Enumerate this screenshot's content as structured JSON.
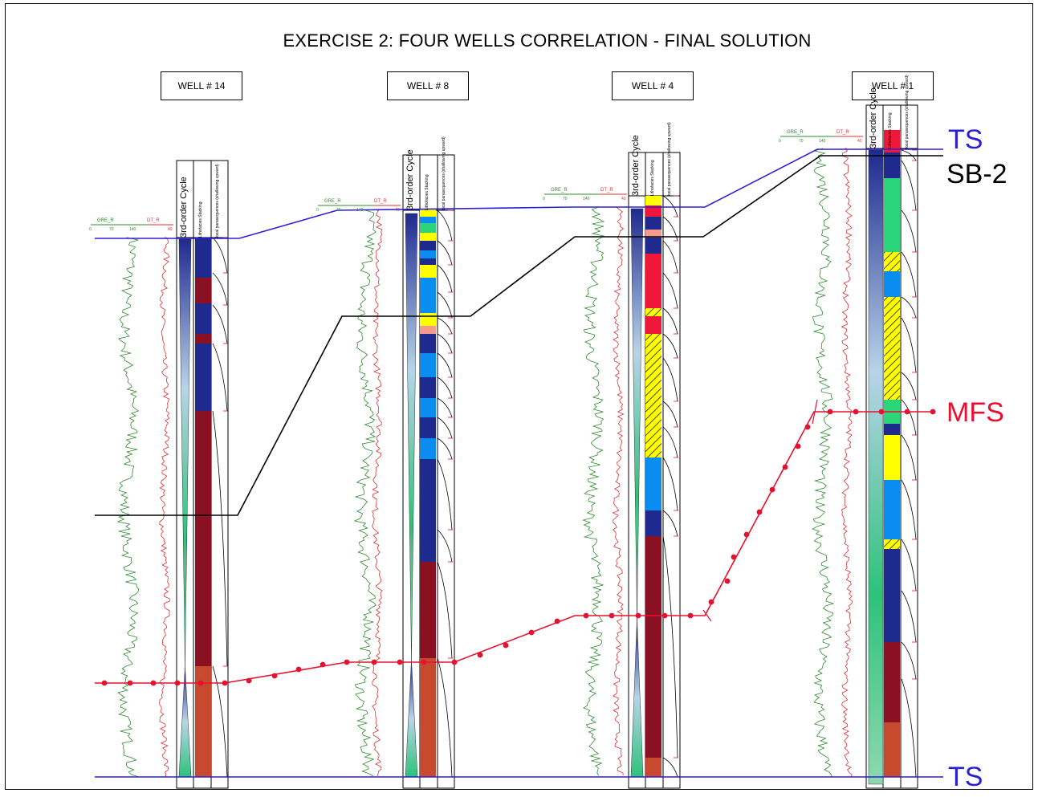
{
  "title": "EXERCISE 2: FOUR WELLS CORRELATION - FINAL SOLUTION",
  "wells": [
    {
      "name": "WELL # 14"
    },
    {
      "name": "WELL # 8"
    },
    {
      "name": "WELL # 4"
    },
    {
      "name": "WELL # 1"
    }
  ],
  "column_headers": {
    "cycle": "3rd-order Cycle",
    "stacking": "Lithofacies Stacking",
    "parasequence": "local parasequences (shallowing upward)"
  },
  "log_headers": {
    "gr": "GRE_R",
    "dt": "DT_R",
    "gr_scale": [
      "0",
      "70",
      "140"
    ],
    "dt_scale": [
      "40"
    ]
  },
  "surfaces": {
    "ts_top": "TS",
    "sb2": "SB-2",
    "mfs": "MFS",
    "ts_bottom": "TS"
  },
  "colors": {
    "ts": "#2b1fd6",
    "sb2": "#000000",
    "mfs": "#e8102f",
    "dark_blue": "#1f2a8f",
    "light_blue": "#0a8cf0",
    "maroon": "#8b1022",
    "red": "#f01838",
    "brown_orange": "#c84a2e",
    "yellow": "#ffff00",
    "green": "#2bd67a",
    "salmon": "#f59a8a",
    "gr_curve": "#2e8b2e",
    "dt_curve": "#e03030"
  }
}
